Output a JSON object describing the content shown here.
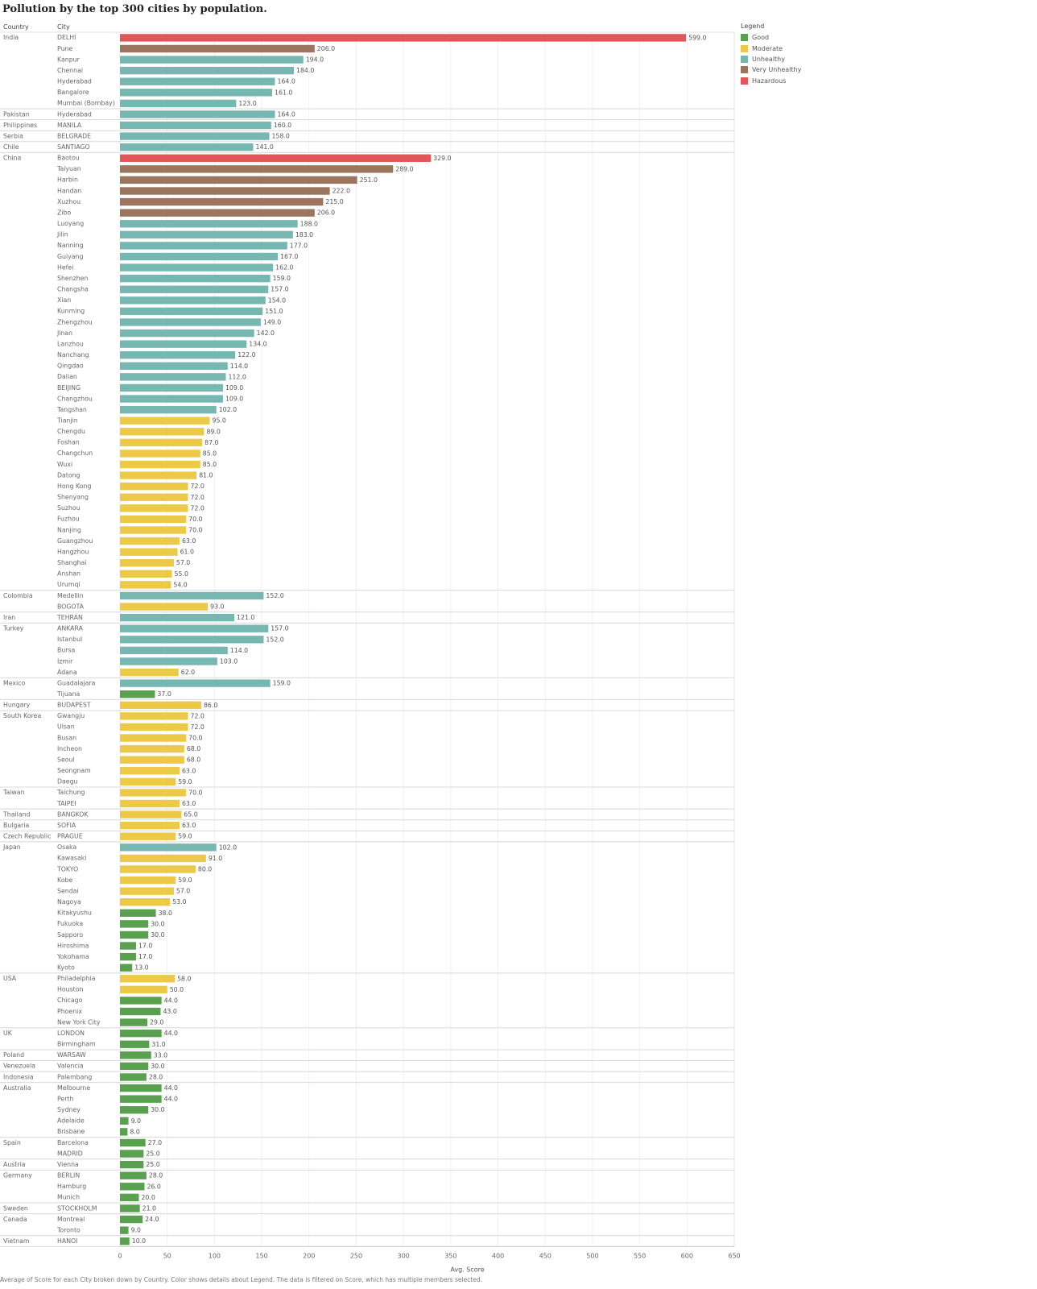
{
  "chart_data": {
    "type": "bar",
    "orientation": "horizontal",
    "title": "Pollution by the top 300 cities by population.",
    "column_headers": {
      "country": "Country",
      "city": "City"
    },
    "xlabel": "Avg. Score",
    "xlim": [
      0,
      650
    ],
    "xticks": [
      0,
      50,
      100,
      150,
      200,
      250,
      300,
      350,
      400,
      450,
      500,
      550,
      600,
      650
    ],
    "value_format": "one decimal",
    "legend": {
      "title": "Legend",
      "placement": "top-right",
      "items": [
        {
          "key": "good",
          "label": "Good",
          "color": "#59a14f"
        },
        {
          "key": "moderate",
          "label": "Moderate",
          "color": "#edc948"
        },
        {
          "key": "unhealthy",
          "label": "Unhealthy",
          "color": "#76b7b2"
        },
        {
          "key": "very_unhealthy",
          "label": "Very Unhealthy",
          "color": "#9c755f"
        },
        {
          "key": "hazardous",
          "label": "Hazardous",
          "color": "#e15759"
        }
      ]
    },
    "groups": [
      {
        "country": "India",
        "cities": [
          {
            "city": "DELHI",
            "score": 599,
            "category": "hazardous"
          },
          {
            "city": "Pune",
            "score": 206,
            "category": "very_unhealthy"
          },
          {
            "city": "Kanpur",
            "score": 194,
            "category": "unhealthy"
          },
          {
            "city": "Chennai",
            "score": 184,
            "category": "unhealthy"
          },
          {
            "city": "Hyderabad",
            "score": 164,
            "category": "unhealthy"
          },
          {
            "city": "Bangalore",
            "score": 161,
            "category": "unhealthy"
          },
          {
            "city": "Mumbai (Bombay)",
            "score": 123,
            "category": "unhealthy"
          }
        ]
      },
      {
        "country": "Pakistan",
        "cities": [
          {
            "city": "Hyderabad",
            "score": 164,
            "category": "unhealthy"
          }
        ]
      },
      {
        "country": "Philippines",
        "cities": [
          {
            "city": "MANILA",
            "score": 160,
            "category": "unhealthy"
          }
        ]
      },
      {
        "country": "Serbia",
        "cities": [
          {
            "city": "BELGRADE",
            "score": 158,
            "category": "unhealthy"
          }
        ]
      },
      {
        "country": "Chile",
        "cities": [
          {
            "city": "SANTIAGO",
            "score": 141,
            "category": "unhealthy"
          }
        ]
      },
      {
        "country": "China",
        "cities": [
          {
            "city": "Baotou",
            "score": 329,
            "category": "hazardous"
          },
          {
            "city": "Taiyuan",
            "score": 289,
            "category": "very_unhealthy"
          },
          {
            "city": "Harbin",
            "score": 251,
            "category": "very_unhealthy"
          },
          {
            "city": "Handan",
            "score": 222,
            "category": "very_unhealthy"
          },
          {
            "city": "Xuzhou",
            "score": 215,
            "category": "very_unhealthy"
          },
          {
            "city": "Zibo",
            "score": 206,
            "category": "very_unhealthy"
          },
          {
            "city": "Luoyang",
            "score": 188,
            "category": "unhealthy"
          },
          {
            "city": "Jilin",
            "score": 183,
            "category": "unhealthy"
          },
          {
            "city": "Nanning",
            "score": 177,
            "category": "unhealthy"
          },
          {
            "city": "Guiyang",
            "score": 167,
            "category": "unhealthy"
          },
          {
            "city": "Hefei",
            "score": 162,
            "category": "unhealthy"
          },
          {
            "city": "Shenzhen",
            "score": 159,
            "category": "unhealthy"
          },
          {
            "city": "Changsha",
            "score": 157,
            "category": "unhealthy"
          },
          {
            "city": "Xian",
            "score": 154,
            "category": "unhealthy"
          },
          {
            "city": "Kunming",
            "score": 151,
            "category": "unhealthy"
          },
          {
            "city": "Zhengzhou",
            "score": 149,
            "category": "unhealthy"
          },
          {
            "city": "Jinan",
            "score": 142,
            "category": "unhealthy"
          },
          {
            "city": "Lanzhou",
            "score": 134,
            "category": "unhealthy"
          },
          {
            "city": "Nanchang",
            "score": 122,
            "category": "unhealthy"
          },
          {
            "city": "Qingdao",
            "score": 114,
            "category": "unhealthy"
          },
          {
            "city": "Dalian",
            "score": 112,
            "category": "unhealthy"
          },
          {
            "city": "BEIJING",
            "score": 109,
            "category": "unhealthy"
          },
          {
            "city": "Changzhou",
            "score": 109,
            "category": "unhealthy"
          },
          {
            "city": "Tangshan",
            "score": 102,
            "category": "unhealthy"
          },
          {
            "city": "Tianjin",
            "score": 95,
            "category": "moderate"
          },
          {
            "city": "Chengdu",
            "score": 89,
            "category": "moderate"
          },
          {
            "city": "Foshan",
            "score": 87,
            "category": "moderate"
          },
          {
            "city": "Changchun",
            "score": 85,
            "category": "moderate"
          },
          {
            "city": "Wuxi",
            "score": 85,
            "category": "moderate"
          },
          {
            "city": "Datong",
            "score": 81,
            "category": "moderate"
          },
          {
            "city": "Hong Kong",
            "score": 72,
            "category": "moderate"
          },
          {
            "city": "Shenyang",
            "score": 72,
            "category": "moderate"
          },
          {
            "city": "Suzhou",
            "score": 72,
            "category": "moderate"
          },
          {
            "city": "Fuzhou",
            "score": 70,
            "category": "moderate"
          },
          {
            "city": "Nanjing",
            "score": 70,
            "category": "moderate"
          },
          {
            "city": "Guangzhou",
            "score": 63,
            "category": "moderate"
          },
          {
            "city": "Hangzhou",
            "score": 61,
            "category": "moderate"
          },
          {
            "city": "Shanghai",
            "score": 57,
            "category": "moderate"
          },
          {
            "city": "Anshan",
            "score": 55,
            "category": "moderate"
          },
          {
            "city": "Urumqi",
            "score": 54,
            "category": "moderate"
          }
        ]
      },
      {
        "country": "Colombia",
        "cities": [
          {
            "city": "Medellin",
            "score": 152,
            "category": "unhealthy"
          },
          {
            "city": "BOGOTA",
            "score": 93,
            "category": "moderate"
          }
        ]
      },
      {
        "country": "Iran",
        "cities": [
          {
            "city": "TEHRAN",
            "score": 121,
            "category": "unhealthy"
          }
        ]
      },
      {
        "country": "Turkey",
        "cities": [
          {
            "city": "ANKARA",
            "score": 157,
            "category": "unhealthy"
          },
          {
            "city": "Istanbul",
            "score": 152,
            "category": "unhealthy"
          },
          {
            "city": "Bursa",
            "score": 114,
            "category": "unhealthy"
          },
          {
            "city": "Izmir",
            "score": 103,
            "category": "unhealthy"
          },
          {
            "city": "Adana",
            "score": 62,
            "category": "moderate"
          }
        ]
      },
      {
        "country": "Mexico",
        "cities": [
          {
            "city": "Guadalajara",
            "score": 159,
            "category": "unhealthy"
          },
          {
            "city": "Tijuana",
            "score": 37,
            "category": "good"
          }
        ]
      },
      {
        "country": "Hungary",
        "cities": [
          {
            "city": "BUDAPEST",
            "score": 86,
            "category": "moderate"
          }
        ]
      },
      {
        "country": "South Korea",
        "cities": [
          {
            "city": "Gwangju",
            "score": 72,
            "category": "moderate"
          },
          {
            "city": "Ulsan",
            "score": 72,
            "category": "moderate"
          },
          {
            "city": "Busan",
            "score": 70,
            "category": "moderate"
          },
          {
            "city": "Incheon",
            "score": 68,
            "category": "moderate"
          },
          {
            "city": "Seoul",
            "score": 68,
            "category": "moderate"
          },
          {
            "city": "Seongnam",
            "score": 63,
            "category": "moderate"
          },
          {
            "city": "Daegu",
            "score": 59,
            "category": "moderate"
          }
        ]
      },
      {
        "country": "Taiwan",
        "cities": [
          {
            "city": "Taichung",
            "score": 70,
            "category": "moderate"
          },
          {
            "city": "TAIPEI",
            "score": 63,
            "category": "moderate"
          }
        ]
      },
      {
        "country": "Thailand",
        "cities": [
          {
            "city": "BANGKOK",
            "score": 65,
            "category": "moderate"
          }
        ]
      },
      {
        "country": "Bulgaria",
        "cities": [
          {
            "city": "SOFIA",
            "score": 63,
            "category": "moderate"
          }
        ]
      },
      {
        "country": "Czech Republic",
        "cities": [
          {
            "city": "PRAGUE",
            "score": 59,
            "category": "moderate"
          }
        ]
      },
      {
        "country": "Japan",
        "cities": [
          {
            "city": "Osaka",
            "score": 102,
            "category": "unhealthy"
          },
          {
            "city": "Kawasaki",
            "score": 91,
            "category": "moderate"
          },
          {
            "city": "TOKYO",
            "score": 80,
            "category": "moderate"
          },
          {
            "city": "Kobe",
            "score": 59,
            "category": "moderate"
          },
          {
            "city": "Sendai",
            "score": 57,
            "category": "moderate"
          },
          {
            "city": "Nagoya",
            "score": 53,
            "category": "moderate"
          },
          {
            "city": "Kitakyushu",
            "score": 38,
            "category": "good"
          },
          {
            "city": "Fukuoka",
            "score": 30,
            "category": "good"
          },
          {
            "city": "Sapporo",
            "score": 30,
            "category": "good"
          },
          {
            "city": "Hiroshima",
            "score": 17,
            "category": "good"
          },
          {
            "city": "Yokohama",
            "score": 17,
            "category": "good"
          },
          {
            "city": "Kyoto",
            "score": 13,
            "category": "good"
          }
        ]
      },
      {
        "country": "USA",
        "cities": [
          {
            "city": "Philadelphia",
            "score": 58,
            "category": "moderate"
          },
          {
            "city": "Houston",
            "score": 50,
            "category": "moderate"
          },
          {
            "city": "Chicago",
            "score": 44,
            "category": "good"
          },
          {
            "city": "Phoenix",
            "score": 43,
            "category": "good"
          },
          {
            "city": "New York City",
            "score": 29,
            "category": "good"
          }
        ]
      },
      {
        "country": "UK",
        "cities": [
          {
            "city": "LONDON",
            "score": 44,
            "category": "good"
          },
          {
            "city": "Birmingham",
            "score": 31,
            "category": "good"
          }
        ]
      },
      {
        "country": "Poland",
        "cities": [
          {
            "city": "WARSAW",
            "score": 33,
            "category": "good"
          }
        ]
      },
      {
        "country": "Venezuela",
        "cities": [
          {
            "city": "Valencia",
            "score": 30,
            "category": "good"
          }
        ]
      },
      {
        "country": "Indonesia",
        "cities": [
          {
            "city": "Palembang",
            "score": 28,
            "category": "good"
          }
        ]
      },
      {
        "country": "Australia",
        "cities": [
          {
            "city": "Melbourne",
            "score": 44,
            "category": "good"
          },
          {
            "city": "Perth",
            "score": 44,
            "category": "good"
          },
          {
            "city": "Sydney",
            "score": 30,
            "category": "good"
          },
          {
            "city": "Adelaide",
            "score": 9,
            "category": "good"
          },
          {
            "city": "Brisbane",
            "score": 8,
            "category": "good"
          }
        ]
      },
      {
        "country": "Spain",
        "cities": [
          {
            "city": "Barcelona",
            "score": 27,
            "category": "good"
          },
          {
            "city": "MADRID",
            "score": 25,
            "category": "good"
          }
        ]
      },
      {
        "country": "Austria",
        "cities": [
          {
            "city": "Vienna",
            "score": 25,
            "category": "good"
          }
        ]
      },
      {
        "country": "Germany",
        "cities": [
          {
            "city": "BERLIN",
            "score": 28,
            "category": "good"
          },
          {
            "city": "Hamburg",
            "score": 26,
            "category": "good"
          },
          {
            "city": "Munich",
            "score": 20,
            "category": "good"
          }
        ]
      },
      {
        "country": "Sweden",
        "cities": [
          {
            "city": "STOCKHOLM",
            "score": 21,
            "category": "good"
          }
        ]
      },
      {
        "country": "Canada",
        "cities": [
          {
            "city": "Montreal",
            "score": 24,
            "category": "good"
          },
          {
            "city": "Toronto",
            "score": 9,
            "category": "good"
          }
        ]
      },
      {
        "country": "Vietnam",
        "cities": [
          {
            "city": "HANOI",
            "score": 10,
            "category": "good"
          }
        ]
      }
    ],
    "footer_note": "Average of Score for each City broken down by Country.  Color shows details about Legend. The data is filtered on Score, which has multiple members selected."
  }
}
